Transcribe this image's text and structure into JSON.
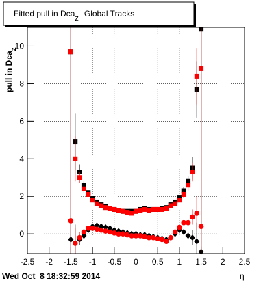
{
  "chart_data": {
    "type": "scatter",
    "title": "Fitted pull in Dca",
    "title_subscript": "z",
    "title_rest": "Global Tracks",
    "y_label": "pull in Dca",
    "y_label_subscript": "z",
    "x_label": "η",
    "footer": "Wed Oct  8 18:32:59 2014",
    "xlim": [
      -2.5,
      2.5
    ],
    "ylim": [
      -1.05,
      11
    ],
    "xticks": [
      -2.5,
      -2,
      -1.5,
      -1,
      -0.5,
      0,
      0.5,
      1,
      1.5,
      2,
      2.5
    ],
    "yticks": [
      0,
      2,
      4,
      6,
      8,
      10
    ],
    "grid": true,
    "x": [
      -1.5,
      -1.4,
      -1.3,
      -1.2,
      -1.1,
      -1.0,
      -0.9,
      -0.8,
      -0.7,
      -0.6,
      -0.5,
      -0.4,
      -0.3,
      -0.2,
      -0.1,
      0,
      0.1,
      0.2,
      0.3,
      0.4,
      0.5,
      0.6,
      0.7,
      0.8,
      0.9,
      1.0,
      1.1,
      1.2,
      1.3,
      1.4,
      1.5
    ],
    "series": [
      {
        "color": "#000000",
        "marker": "square",
        "values": [
          9.7,
          4.9,
          3.3,
          2.6,
          2.2,
          1.9,
          1.7,
          1.55,
          1.45,
          1.35,
          1.3,
          1.25,
          1.2,
          1.2,
          1.2,
          1.2,
          1.3,
          1.35,
          1.3,
          1.3,
          1.3,
          1.35,
          1.4,
          1.55,
          1.7,
          1.95,
          2.3,
          2.8,
          3.5,
          7.7,
          10.9
        ],
        "errors": [
          12,
          1.5,
          0.4,
          0.2,
          0.1,
          0.1,
          0,
          0,
          0,
          0,
          0,
          0,
          0,
          0,
          0,
          0,
          0,
          0,
          0,
          0,
          0,
          0,
          0,
          0,
          0.1,
          0.1,
          0.2,
          0.3,
          0.6,
          1.5,
          12
        ]
      },
      {
        "color": "#ff0000",
        "marker": "square",
        "values": [
          9.7,
          4.0,
          3.0,
          2.4,
          2.1,
          1.8,
          1.6,
          1.5,
          1.4,
          1.35,
          1.3,
          1.25,
          1.2,
          1.15,
          1.1,
          1.2,
          1.25,
          1.3,
          1.25,
          1.3,
          1.3,
          1.3,
          1.35,
          1.5,
          1.6,
          1.8,
          2.1,
          2.6,
          3.3,
          8.4,
          8.8
        ],
        "errors": [
          12,
          1.2,
          0.3,
          0.2,
          0.1,
          0.1,
          0,
          0,
          0,
          0,
          0,
          0,
          0,
          0,
          0,
          0,
          0,
          0,
          0,
          0,
          0,
          0,
          0,
          0,
          0.1,
          0.1,
          0.2,
          0.3,
          0.5,
          1.5,
          12
        ]
      },
      {
        "color": "#000000",
        "marker": "diamond",
        "values": [
          -0.3,
          -0.5,
          -0.3,
          -0.1,
          0.2,
          0.4,
          0.45,
          0.4,
          0.35,
          0.3,
          0.2,
          0.15,
          0.1,
          0.05,
          0,
          0,
          -0.05,
          -0.05,
          -0.1,
          -0.15,
          -0.2,
          -0.25,
          -0.3,
          -0.2,
          0,
          0.2,
          0.1,
          -0.1,
          -0.2,
          -0.4,
          -0.95
        ],
        "errors": [
          12,
          1.0,
          0.3,
          0.1,
          0.1,
          0,
          0,
          0,
          0,
          0,
          0,
          0,
          0,
          0,
          0,
          0,
          0,
          0,
          0,
          0,
          0,
          0,
          0,
          0,
          0,
          0,
          0.1,
          0.2,
          0.4,
          1.0,
          12
        ]
      },
      {
        "color": "#ff0000",
        "marker": "circle",
        "values": [
          0.7,
          -0.5,
          -0.2,
          0.1,
          0.3,
          0.3,
          0.25,
          0.2,
          0.15,
          0.1,
          0.05,
          0,
          0,
          -0.05,
          -0.1,
          -0.1,
          -0.1,
          -0.15,
          -0.2,
          -0.2,
          -0.25,
          -0.3,
          -0.4,
          -0.2,
          0.1,
          0.35,
          0.6,
          0.6,
          0.9,
          1.1,
          0.4
        ],
        "errors": [
          12,
          0.8,
          0.3,
          0.1,
          0.1,
          0,
          0,
          0,
          0,
          0,
          0,
          0,
          0,
          0,
          0,
          0,
          0,
          0,
          0,
          0,
          0,
          0,
          0,
          0,
          0,
          0,
          0.1,
          0.2,
          0.4,
          0.9,
          12
        ]
      }
    ]
  }
}
